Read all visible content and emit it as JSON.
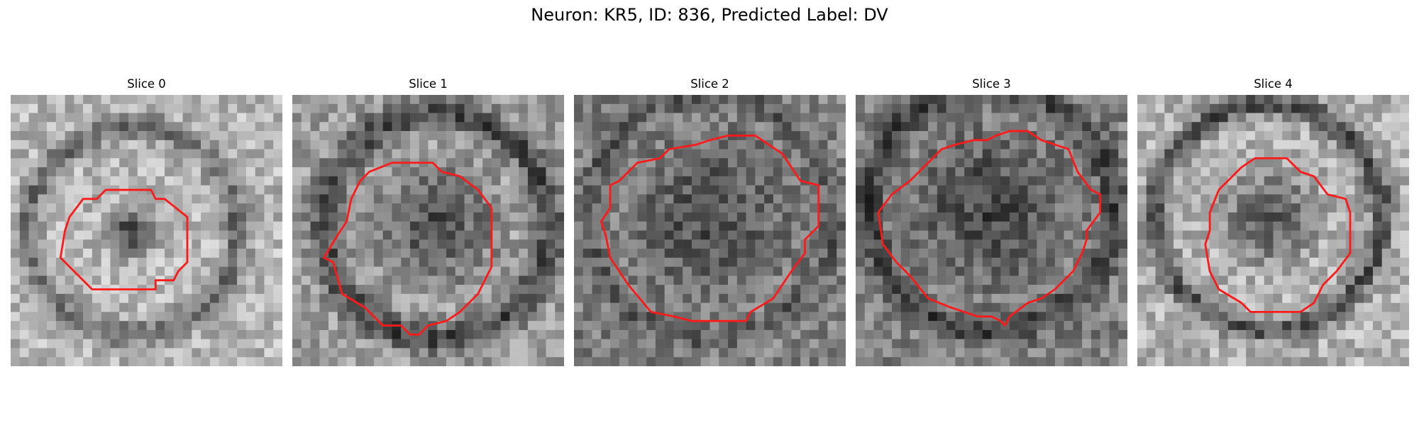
{
  "figure": {
    "title": "Neuron: KR5, ID: 836, Predicted Label: DV"
  },
  "panels": [
    {
      "title": "Slice 0"
    },
    {
      "title": "Slice 1"
    },
    {
      "title": "Slice 2"
    },
    {
      "title": "Slice 3"
    },
    {
      "title": "Slice 4"
    }
  ],
  "colors": {
    "contour": "#ff1a1a",
    "colormap": "grayscale"
  }
}
